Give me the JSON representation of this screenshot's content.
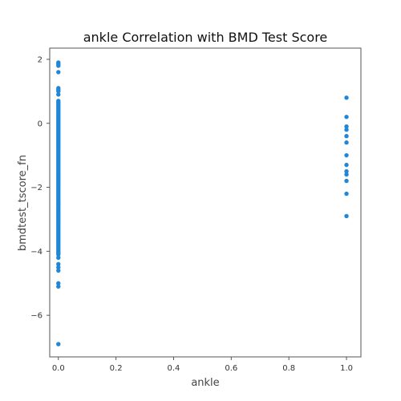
{
  "chart_data": {
    "type": "scatter",
    "title": "ankle Correlation with BMD Test Score",
    "xlabel": "ankle",
    "ylabel": "bmdtest_tscore_fn",
    "xlim": [
      -0.03,
      1.05
    ],
    "ylim": [
      -7.3,
      2.35
    ],
    "x_ticks": [
      0.0,
      0.2,
      0.4,
      0.6,
      0.8,
      1.0
    ],
    "x_tick_labels": [
      "0.0",
      "0.2",
      "0.4",
      "0.6",
      "0.8",
      "1.0"
    ],
    "y_ticks": [
      2,
      0,
      -2,
      -4,
      -6
    ],
    "y_tick_labels": [
      "2",
      "0",
      "−2",
      "−4",
      "−6"
    ],
    "grid": false,
    "point_color": "#1f86d8",
    "series": [
      {
        "x_value": 0,
        "y": [
          1.9,
          1.85,
          1.8,
          1.6,
          1.1,
          1.05,
          1.0,
          0.9,
          0.7,
          0.65,
          0.6,
          0.55,
          0.5,
          0.45,
          0.4,
          0.35,
          0.3,
          0.25,
          0.2,
          0.15,
          0.1,
          0.05,
          0.0,
          -0.05,
          -0.1,
          -0.15,
          -0.2,
          -0.25,
          -0.3,
          -0.35,
          -0.4,
          -0.45,
          -0.5,
          -0.55,
          -0.6,
          -0.65,
          -0.7,
          -0.75,
          -0.8,
          -0.85,
          -0.9,
          -0.95,
          -1.0,
          -1.05,
          -1.1,
          -1.15,
          -1.2,
          -1.25,
          -1.3,
          -1.35,
          -1.4,
          -1.45,
          -1.5,
          -1.55,
          -1.6,
          -1.65,
          -1.7,
          -1.75,
          -1.8,
          -1.85,
          -1.9,
          -1.95,
          -2.0,
          -2.05,
          -2.1,
          -2.15,
          -2.2,
          -2.25,
          -2.3,
          -2.35,
          -2.4,
          -2.45,
          -2.5,
          -2.55,
          -2.6,
          -2.65,
          -2.7,
          -2.75,
          -2.8,
          -2.85,
          -2.9,
          -2.95,
          -3.0,
          -3.05,
          -3.1,
          -3.15,
          -3.2,
          -3.25,
          -3.3,
          -3.35,
          -3.4,
          -3.45,
          -3.5,
          -3.55,
          -3.6,
          -3.65,
          -3.7,
          -3.75,
          -3.8,
          -3.85,
          -3.9,
          -3.95,
          -4.0,
          -4.05,
          -4.1,
          -4.2,
          -4.4,
          -4.5,
          -4.6,
          -5.0,
          -5.1,
          -6.9
        ]
      },
      {
        "x_value": 1,
        "y": [
          0.8,
          0.2,
          -0.1,
          -0.2,
          -0.4,
          -0.6,
          -1.0,
          -1.3,
          -1.5,
          -1.6,
          -1.8,
          -2.2,
          -2.9
        ]
      }
    ]
  }
}
